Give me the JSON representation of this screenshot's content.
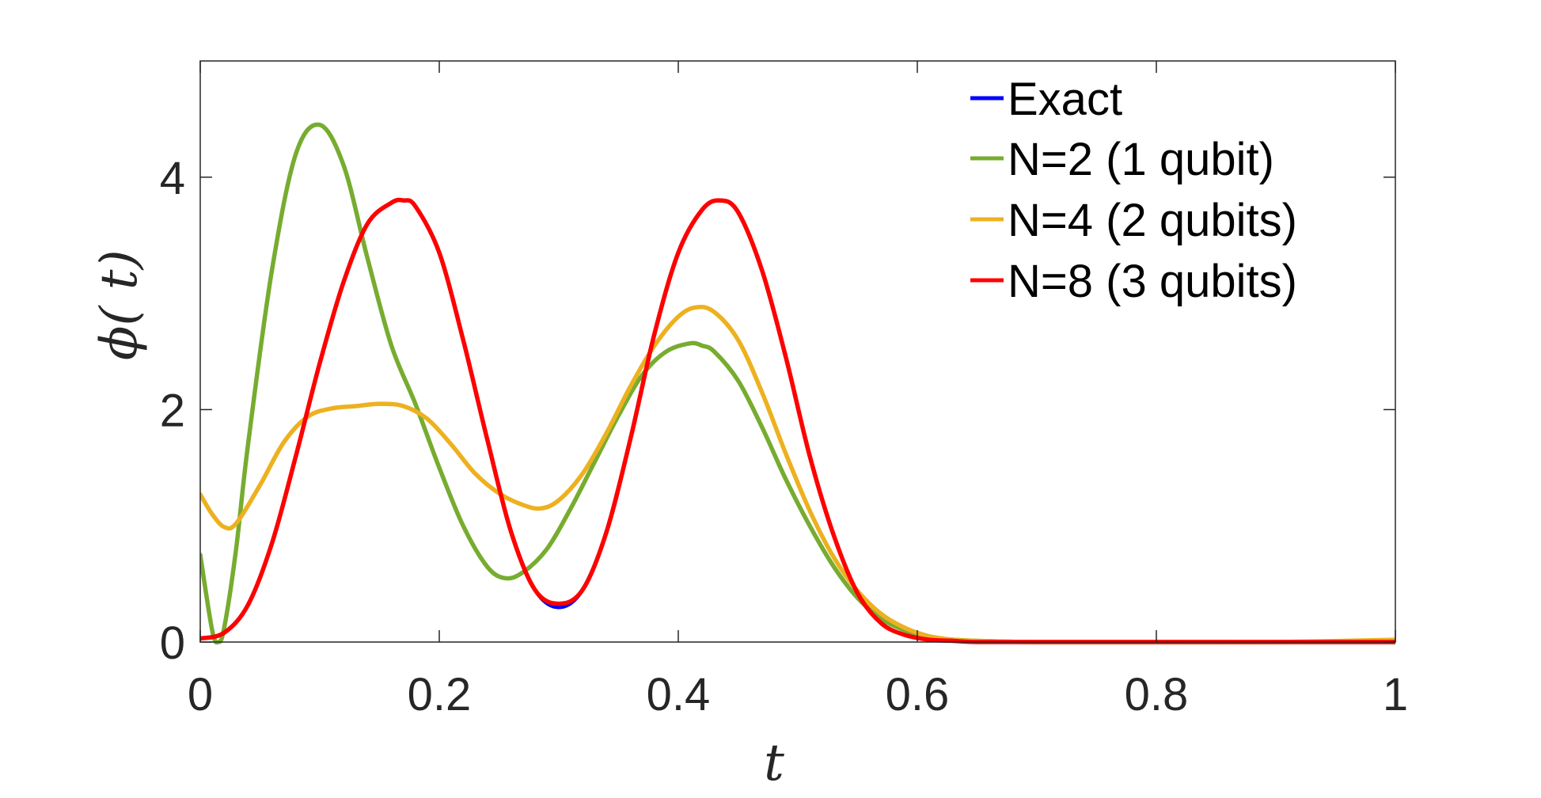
{
  "chart_data": {
    "type": "line",
    "xlabel": "t",
    "ylabel": "ϕ( t)",
    "xlim": [
      0,
      1
    ],
    "ylim": [
      0,
      5
    ],
    "xticks": [
      0,
      0.2,
      0.4,
      0.6,
      0.8,
      1
    ],
    "xtick_labels": [
      "0",
      "0.2",
      "0.4",
      "0.6",
      "0.8",
      "1"
    ],
    "yticks": [
      0,
      2,
      4
    ],
    "ytick_labels": [
      "0",
      "2",
      "4"
    ],
    "grid": false,
    "legend_position": "top-right",
    "series": [
      {
        "name": "Exact",
        "color": "#0000ff",
        "x": [
          0,
          0.02,
          0.04,
          0.06,
          0.08,
          0.1,
          0.12,
          0.14,
          0.16,
          0.17,
          0.18,
          0.2,
          0.22,
          0.24,
          0.26,
          0.28,
          0.3,
          0.32,
          0.34,
          0.36,
          0.38,
          0.4,
          0.42,
          0.435,
          0.45,
          0.47,
          0.49,
          0.51,
          0.53,
          0.55,
          0.57,
          0.59,
          0.61,
          0.63,
          0.65,
          0.7,
          0.8,
          0.9,
          1.0
        ],
        "y": [
          0.03,
          0.08,
          0.32,
          0.85,
          1.6,
          2.4,
          3.1,
          3.6,
          3.78,
          3.8,
          3.75,
          3.35,
          2.6,
          1.75,
          0.95,
          0.45,
          0.3,
          0.45,
          0.95,
          1.75,
          2.65,
          3.35,
          3.72,
          3.8,
          3.7,
          3.2,
          2.45,
          1.6,
          0.92,
          0.42,
          0.16,
          0.06,
          0.02,
          0.01,
          0,
          0,
          0,
          0,
          0
        ]
      },
      {
        "name": "N=2 (1 qubit)",
        "color": "#77ac30",
        "x": [
          0,
          0.01,
          0.015,
          0.02,
          0.03,
          0.04,
          0.06,
          0.08,
          0.1,
          0.12,
          0.14,
          0.16,
          0.18,
          0.2,
          0.22,
          0.24,
          0.255,
          0.27,
          0.29,
          0.31,
          0.33,
          0.35,
          0.37,
          0.39,
          0.41,
          0.42,
          0.43,
          0.45,
          0.47,
          0.49,
          0.51,
          0.53,
          0.55,
          0.57,
          0.59,
          0.61,
          0.63,
          0.65,
          0.7,
          0.8,
          0.9,
          1.0
        ],
        "y": [
          0.75,
          0.1,
          0.0,
          0.12,
          0.8,
          1.7,
          3.2,
          4.2,
          4.45,
          4.1,
          3.3,
          2.55,
          2.05,
          1.5,
          1.0,
          0.65,
          0.55,
          0.6,
          0.8,
          1.15,
          1.55,
          1.95,
          2.3,
          2.5,
          2.57,
          2.55,
          2.5,
          2.25,
          1.85,
          1.4,
          1.0,
          0.65,
          0.38,
          0.2,
          0.1,
          0.04,
          0.02,
          0.01,
          0,
          0,
          0,
          0
        ]
      },
      {
        "name": "N=4 (2 qubits)",
        "color": "#edb120",
        "x": [
          0,
          0.01,
          0.02,
          0.03,
          0.05,
          0.07,
          0.09,
          0.11,
          0.13,
          0.15,
          0.17,
          0.19,
          0.21,
          0.23,
          0.25,
          0.27,
          0.285,
          0.3,
          0.32,
          0.34,
          0.36,
          0.38,
          0.4,
          0.415,
          0.43,
          0.45,
          0.47,
          0.49,
          0.51,
          0.53,
          0.55,
          0.57,
          0.59,
          0.61,
          0.63,
          0.65,
          0.7,
          0.8,
          0.9,
          1.0
        ],
        "y": [
          1.27,
          1.1,
          0.99,
          1.02,
          1.35,
          1.72,
          1.94,
          2.01,
          2.03,
          2.05,
          2.03,
          1.92,
          1.7,
          1.45,
          1.28,
          1.18,
          1.15,
          1.22,
          1.45,
          1.8,
          2.2,
          2.55,
          2.8,
          2.88,
          2.84,
          2.6,
          2.15,
          1.62,
          1.13,
          0.73,
          0.44,
          0.24,
          0.12,
          0.05,
          0.02,
          0.01,
          0,
          0,
          0,
          0.02
        ]
      },
      {
        "name": "N=8 (3 qubits)",
        "color": "#ff0000",
        "x": [
          0,
          0.02,
          0.04,
          0.06,
          0.08,
          0.1,
          0.12,
          0.14,
          0.16,
          0.17,
          0.18,
          0.2,
          0.22,
          0.24,
          0.26,
          0.28,
          0.3,
          0.32,
          0.34,
          0.36,
          0.38,
          0.4,
          0.42,
          0.435,
          0.45,
          0.47,
          0.49,
          0.51,
          0.53,
          0.55,
          0.57,
          0.59,
          0.61,
          0.63,
          0.65,
          0.7,
          0.8,
          0.9,
          1.0
        ],
        "y": [
          0.03,
          0.08,
          0.32,
          0.85,
          1.6,
          2.4,
          3.1,
          3.6,
          3.78,
          3.8,
          3.75,
          3.35,
          2.6,
          1.75,
          0.95,
          0.45,
          0.33,
          0.45,
          0.95,
          1.75,
          2.65,
          3.35,
          3.72,
          3.8,
          3.7,
          3.2,
          2.45,
          1.6,
          0.92,
          0.42,
          0.16,
          0.06,
          0.02,
          0.01,
          0,
          0,
          0,
          0,
          0
        ]
      }
    ]
  }
}
